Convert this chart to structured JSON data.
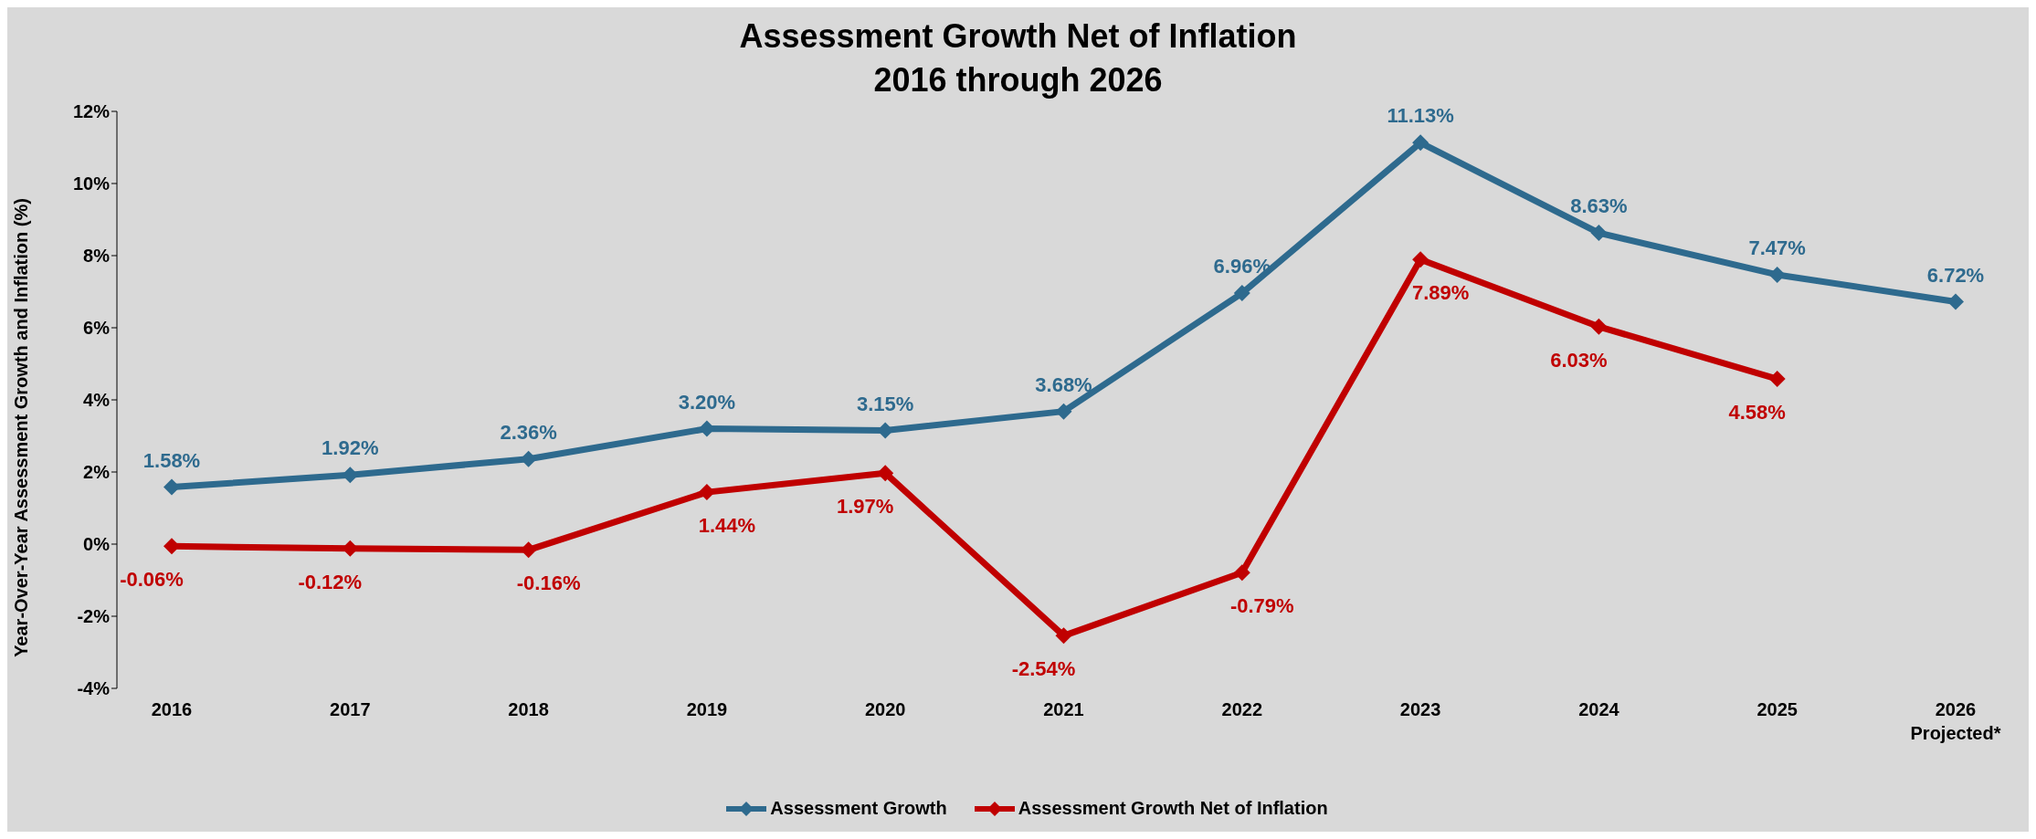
{
  "chart_data": {
    "type": "line",
    "title": "Assessment Growth Net of Inflation",
    "subtitle": "2016 through 2026",
    "ylabel": "Year-Over-Year Assessment Growth and Inflation (%)",
    "categories": [
      "2016",
      "2017",
      "2018",
      "2019",
      "2020",
      "2021",
      "2022",
      "2023",
      "2024",
      "2025",
      "2026\nProjected*"
    ],
    "series": [
      {
        "name": "Assessment Growth",
        "color": "#2e6a8e",
        "values": [
          1.58,
          1.92,
          2.36,
          3.2,
          3.15,
          3.68,
          6.96,
          11.13,
          8.63,
          7.47,
          6.72
        ],
        "value_labels": [
          "1.58%",
          "1.92%",
          "2.36%",
          "3.20%",
          "3.15%",
          "3.68%",
          "6.96%",
          "11.13%",
          "8.63%",
          "7.47%",
          "6.72%"
        ]
      },
      {
        "name": "Assessment Growth Net of Inflation",
        "color": "#c00000",
        "values": [
          -0.06,
          -0.12,
          -0.16,
          1.44,
          1.97,
          -2.54,
          -0.79,
          7.89,
          6.03,
          4.58,
          null
        ],
        "value_labels": [
          "-0.06%",
          "-0.12%",
          "-0.16%",
          "1.44%",
          "1.97%",
          "-2.54%",
          "-0.79%",
          "7.89%",
          "6.03%",
          "4.58%",
          null
        ]
      }
    ],
    "ylim": [
      -4,
      12
    ],
    "yticks": [
      {
        "value": -4,
        "label": "-4%"
      },
      {
        "value": -2,
        "label": "-2%"
      },
      {
        "value": 0,
        "label": "0%"
      },
      {
        "value": 2,
        "label": "2%"
      },
      {
        "value": 4,
        "label": "4%"
      },
      {
        "value": 6,
        "label": "6%"
      },
      {
        "value": 8,
        "label": "8%"
      },
      {
        "value": 10,
        "label": "10%"
      },
      {
        "value": 12,
        "label": "12%"
      }
    ],
    "grid": false,
    "legend": "bottom",
    "marker": "diamond",
    "line_style": "solid"
  }
}
